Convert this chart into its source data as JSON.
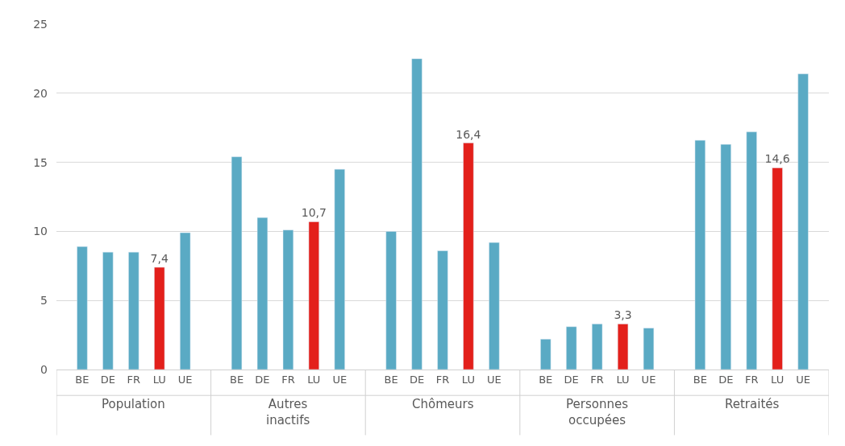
{
  "chart_data": {
    "type": "bar",
    "categories": [
      "Population",
      "Autres\ninactifs",
      "Chômeurs",
      "Personnes\noccupées",
      "Retraités"
    ],
    "series": [
      {
        "name": "BE",
        "color": "#5aaac4",
        "values": [
          8.9,
          15.4,
          10.0,
          2.2,
          16.6
        ]
      },
      {
        "name": "DE",
        "color": "#5aaac4",
        "values": [
          8.5,
          11.0,
          22.5,
          3.1,
          16.3
        ]
      },
      {
        "name": "FR",
        "color": "#5aaac4",
        "values": [
          8.5,
          10.1,
          8.6,
          3.3,
          17.2
        ]
      },
      {
        "name": "LU",
        "color": "#e3201b",
        "values": [
          7.4,
          10.7,
          16.4,
          3.3,
          14.6
        ],
        "value_labels": [
          "7,4",
          "10,7",
          "16,4",
          "3,3",
          "14,6"
        ]
      },
      {
        "name": "UE",
        "color": "#5aaac4",
        "values": [
          9.9,
          14.5,
          9.2,
          3.0,
          21.4
        ]
      }
    ],
    "ylim": [
      0,
      25
    ],
    "yticks": [
      0,
      5,
      10,
      15,
      20,
      25
    ],
    "grid": "y",
    "legend": false
  }
}
